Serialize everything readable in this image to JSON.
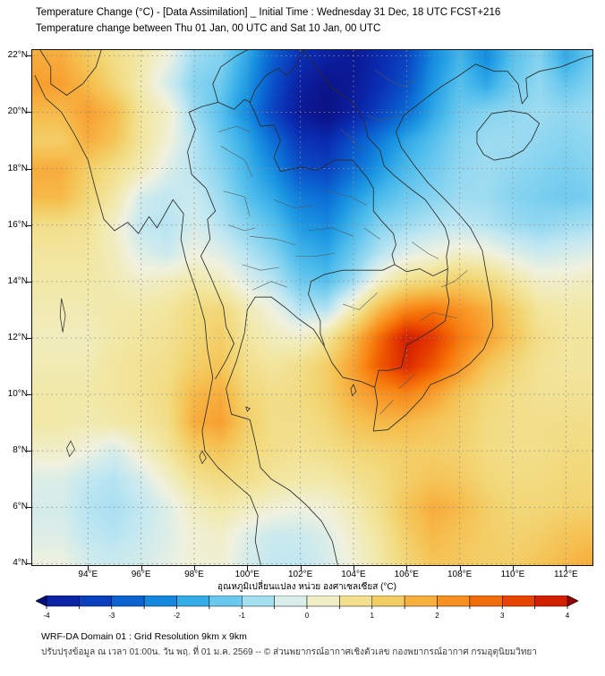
{
  "header": {
    "title_line1": "Temperature Change (°C) - [Data Assimilation] _ Initial Time : Wednesday 31 Dec, 18 UTC FCST+216",
    "title_line2": "Temperature change between Thu 01 Jan, 00 UTC and Sat 10 Jan, 00 UTC"
  },
  "map": {
    "lat_ticks": [
      "22°N",
      "20°N",
      "18°N",
      "16°N",
      "14°N",
      "12°N",
      "10°N",
      "8°N",
      "6°N",
      "4°N"
    ],
    "lon_ticks": [
      "94°E",
      "96°E",
      "98°E",
      "100°E",
      "102°E",
      "104°E",
      "106°E",
      "108°E",
      "110°E",
      "112°E"
    ]
  },
  "colorbar": {
    "label": "อุณหภูมิเปลี่ยนแปลง หน่วย องศาเซลเซียส (°C)",
    "tick_labels": [
      "-4",
      "-3",
      "-2",
      "-1",
      "0",
      "1",
      "2",
      "3",
      "4"
    ]
  },
  "footer": {
    "line1": "WRF-DA Domain 01 : Grid Resolution 9km x 9km",
    "line2": "ปรับปรุงข้อมูล ณ เวลา 01:00น. วัน พฤ. ที่ 01 ม.ค. 2569 -- © ส่วนพยากรณ์อากาศเชิงตัวเลข กองพยากรณ์อากาศ กรมอุตุนิยมวิทยา"
  },
  "chart_data": {
    "type": "heatmap",
    "title": "Temperature change (°C) between Thu 01 Jan 00 UTC and Sat 10 Jan 00 UTC",
    "units": "°C",
    "view": {
      "lon_min": 91.9,
      "lon_max": 113.0,
      "lat_min": 3.95,
      "lat_max": 22.2
    },
    "lon_tick_values": [
      94,
      96,
      98,
      100,
      102,
      104,
      106,
      108,
      110,
      112
    ],
    "lat_tick_values": [
      22,
      20,
      18,
      16,
      14,
      12,
      10,
      8,
      6,
      4
    ],
    "colorbar_range": [
      -4,
      4
    ],
    "colorbar_step": 0.5,
    "colorbar_tick_values": [
      -4,
      -3,
      -2,
      -1,
      0,
      1,
      2,
      3,
      4
    ],
    "colormap": [
      {
        "v": -4.5,
        "c": "#0a0f78"
      },
      {
        "v": -4.0,
        "c": "#0c1a96"
      },
      {
        "v": -3.5,
        "c": "#0a2fb4"
      },
      {
        "v": -3.0,
        "c": "#0a50c8"
      },
      {
        "v": -2.5,
        "c": "#0e74d8"
      },
      {
        "v": -2.0,
        "c": "#1e9ae4"
      },
      {
        "v": -1.5,
        "c": "#4cbcec"
      },
      {
        "v": -1.0,
        "c": "#86d4f0"
      },
      {
        "v": -0.5,
        "c": "#c2e8f2"
      },
      {
        "v": 0.0,
        "c": "#f0f2e0"
      },
      {
        "v": 0.5,
        "c": "#f2e9a8"
      },
      {
        "v": 1.0,
        "c": "#f2d878"
      },
      {
        "v": 1.5,
        "c": "#f6c050"
      },
      {
        "v": 2.0,
        "c": "#f8a030"
      },
      {
        "v": 2.5,
        "c": "#f88010"
      },
      {
        "v": 3.0,
        "c": "#f05800"
      },
      {
        "v": 3.5,
        "c": "#e03000"
      },
      {
        "v": 4.0,
        "c": "#c01000"
      },
      {
        "v": 4.5,
        "c": "#980000"
      }
    ],
    "grid": {
      "lon_start": 93,
      "lon_step": 1,
      "lat_start": 23,
      "lat_step": -1,
      "values": [
        [
          1.5,
          1.2,
          0.8,
          0.6,
          0.2,
          -0.6,
          -0.8,
          -1.5,
          -2.5,
          -3.2,
          -3.6,
          -3.8,
          -3.5,
          -3.0,
          -2.0,
          -1.5,
          -2.0,
          -1.2,
          -0.8,
          -1.5,
          -1.0
        ],
        [
          1.8,
          1.3,
          0.8,
          0.5,
          0.0,
          -0.8,
          -1.0,
          -1.8,
          -2.8,
          -3.5,
          -3.8,
          -4.0,
          -3.6,
          -3.2,
          -2.2,
          -1.6,
          -2.2,
          -1.4,
          -1.0,
          -1.8,
          -1.2
        ],
        [
          2.0,
          1.6,
          1.0,
          0.4,
          -0.3,
          -1.0,
          -1.2,
          -2.0,
          -3.0,
          -3.8,
          -4.2,
          -4.0,
          -3.5,
          -3.0,
          -2.0,
          -1.4,
          -1.8,
          -1.2,
          -0.9,
          -1.3,
          -1.0
        ],
        [
          1.6,
          2.0,
          1.6,
          0.6,
          0.2,
          -0.8,
          -1.4,
          -2.2,
          -3.2,
          -4.0,
          -4.3,
          -3.8,
          -3.2,
          -2.6,
          -1.8,
          -1.2,
          -1.0,
          -0.9,
          -0.8,
          -0.9,
          -0.8
        ],
        [
          1.2,
          1.8,
          1.4,
          0.6,
          0.1,
          -0.6,
          -1.2,
          -1.8,
          -2.6,
          -3.4,
          -3.6,
          -3.0,
          -2.4,
          -1.8,
          -1.4,
          -1.0,
          -0.8,
          -0.8,
          -0.9,
          -1.0,
          -0.9
        ],
        [
          1.8,
          1.2,
          0.8,
          0.4,
          -0.2,
          -0.6,
          -1.0,
          -1.6,
          -2.2,
          -3.0,
          -3.2,
          -2.6,
          -2.0,
          -1.5,
          -1.2,
          -0.9,
          -0.8,
          -0.9,
          -1.0,
          -1.1,
          -1.0
        ],
        [
          1.6,
          1.0,
          0.5,
          -0.3,
          -0.5,
          -0.4,
          -0.8,
          -1.4,
          -1.8,
          -2.4,
          -2.6,
          -2.0,
          -1.5,
          -1.2,
          -1.0,
          -0.8,
          -0.8,
          -1.0,
          -1.1,
          -1.2,
          -1.1
        ],
        [
          0.8,
          0.7,
          0.2,
          -0.5,
          -0.6,
          -0.3,
          -0.6,
          -1.0,
          -1.4,
          -2.0,
          -2.2,
          -1.6,
          -1.0,
          -0.8,
          -0.6,
          -0.5,
          -0.6,
          -0.8,
          -0.9,
          -0.8,
          -0.7
        ],
        [
          0.6,
          0.6,
          0.3,
          -0.2,
          -0.4,
          0.0,
          -0.2,
          -0.6,
          -1.0,
          -1.6,
          -1.8,
          -1.2,
          -0.6,
          -0.2,
          0.0,
          0.2,
          0.1,
          -0.2,
          -0.4,
          -0.3,
          -0.2
        ],
        [
          0.5,
          0.5,
          0.4,
          0.2,
          0.3,
          0.5,
          0.3,
          -0.2,
          -0.6,
          -1.2,
          -1.4,
          -0.8,
          0.2,
          0.8,
          1.0,
          1.2,
          1.0,
          0.6,
          0.2,
          0.2,
          0.3
        ],
        [
          0.4,
          0.4,
          0.5,
          0.5,
          0.6,
          0.9,
          1.0,
          0.4,
          0.0,
          -0.6,
          -0.6,
          0.4,
          1.6,
          2.4,
          2.6,
          2.2,
          1.8,
          1.2,
          0.6,
          0.5,
          0.5
        ],
        [
          0.3,
          0.3,
          0.5,
          0.6,
          0.7,
          1.0,
          1.2,
          0.6,
          0.3,
          0.2,
          0.6,
          1.6,
          2.8,
          3.8,
          3.4,
          2.6,
          2.0,
          1.4,
          0.8,
          0.6,
          0.6
        ],
        [
          0.4,
          0.4,
          0.6,
          0.7,
          0.8,
          1.2,
          1.4,
          0.8,
          0.6,
          0.8,
          1.2,
          2.0,
          3.0,
          3.6,
          3.0,
          2.2,
          1.4,
          1.0,
          0.7,
          0.6,
          0.6
        ],
        [
          0.5,
          0.5,
          0.6,
          0.7,
          0.9,
          1.6,
          1.8,
          1.0,
          0.8,
          0.9,
          1.2,
          1.8,
          2.2,
          2.4,
          2.0,
          1.4,
          1.0,
          0.8,
          0.7,
          0.7,
          0.7
        ],
        [
          0.5,
          0.4,
          0.5,
          0.6,
          0.8,
          1.8,
          2.0,
          1.2,
          0.8,
          0.8,
          1.0,
          1.4,
          1.6,
          1.6,
          1.4,
          1.2,
          0.9,
          0.8,
          0.8,
          0.8,
          0.8
        ],
        [
          0.2,
          0.0,
          -0.3,
          0.2,
          0.6,
          1.2,
          1.4,
          1.0,
          0.8,
          0.7,
          0.8,
          1.0,
          1.1,
          1.2,
          1.2,
          1.1,
          0.9,
          0.8,
          0.8,
          0.9,
          0.9
        ],
        [
          -0.2,
          -0.5,
          -0.6,
          -0.3,
          0.2,
          0.7,
          0.9,
          0.8,
          0.6,
          0.5,
          0.5,
          0.7,
          0.9,
          1.2,
          1.4,
          1.3,
          1.0,
          0.9,
          0.9,
          1.0,
          1.0
        ],
        [
          -0.3,
          -0.6,
          -0.7,
          -0.5,
          -0.2,
          0.3,
          0.5,
          0.3,
          0.1,
          0.0,
          0.1,
          0.4,
          0.8,
          1.4,
          1.8,
          1.6,
          1.2,
          1.0,
          1.0,
          1.1,
          1.1
        ],
        [
          -0.2,
          -0.5,
          -0.6,
          -0.4,
          -0.2,
          0.1,
          0.2,
          -0.2,
          -0.4,
          -0.4,
          -0.2,
          0.2,
          0.6,
          1.2,
          1.6,
          1.4,
          1.2,
          1.1,
          1.2,
          1.4,
          1.5
        ],
        [
          0.0,
          -0.3,
          -0.4,
          -0.3,
          -0.1,
          0.1,
          0.1,
          -0.3,
          -0.5,
          -0.5,
          -0.3,
          0.1,
          0.5,
          1.0,
          1.4,
          1.3,
          1.2,
          1.2,
          1.4,
          1.6,
          1.8
        ],
        [
          0.0,
          -0.3,
          -0.4,
          -0.3,
          -0.1,
          0.1,
          0.1,
          -0.3,
          -0.5,
          -0.5,
          -0.3,
          0.1,
          0.5,
          1.0,
          1.4,
          1.3,
          1.2,
          1.2,
          1.4,
          1.6,
          1.8
        ]
      ]
    }
  }
}
